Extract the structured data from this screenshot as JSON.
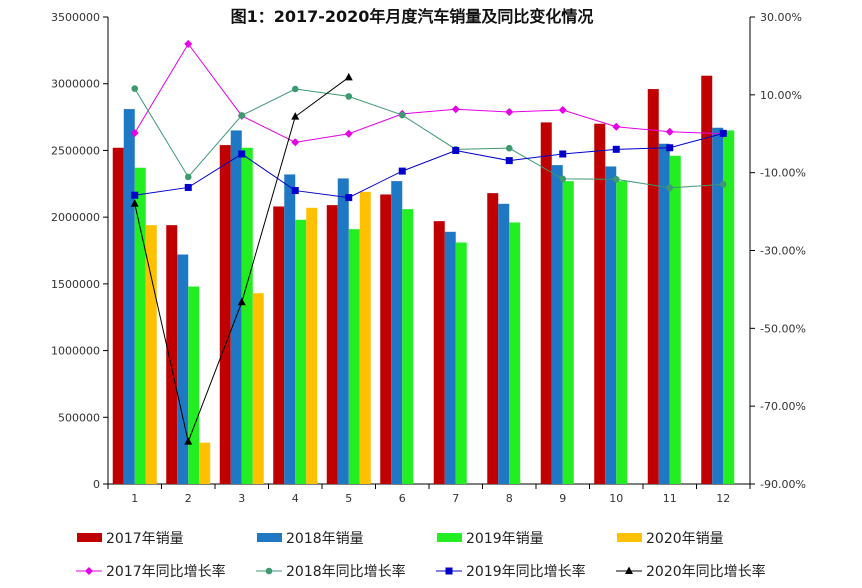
{
  "chart_data": {
    "type": "bar",
    "title": "图1：2017-2020年月度汽车销量及同比变化情况",
    "categories": [
      "1",
      "2",
      "3",
      "4",
      "5",
      "6",
      "7",
      "8",
      "9",
      "10",
      "11",
      "12"
    ],
    "y_left": {
      "ylim": [
        0,
        3500000
      ],
      "ticks": [
        "0",
        "500000",
        "1000000",
        "1500000",
        "2000000",
        "2500000",
        "3000000",
        "3500000"
      ]
    },
    "y_right": {
      "ylim": [
        -90,
        30
      ],
      "ticks": [
        "-90.00%",
        "-70.00%",
        "-50.00%",
        "-30.00%",
        "-10.00%",
        "10.00%",
        "30.00%"
      ]
    },
    "bar_series": [
      {
        "name": "2017年销量",
        "color": "#C00000",
        "values": [
          2520000,
          1940000,
          2540000,
          2080000,
          2090000,
          2170000,
          1970000,
          2180000,
          2710000,
          2700000,
          2960000,
          3060000
        ]
      },
      {
        "name": "2018年销量",
        "color": "#1F78C4",
        "values": [
          2810000,
          1720000,
          2650000,
          2320000,
          2290000,
          2270000,
          1890000,
          2100000,
          2390000,
          2380000,
          2550000,
          2670000
        ]
      },
      {
        "name": "2019年销量",
        "color": "#22EE22",
        "values": [
          2370000,
          1480000,
          2520000,
          1980000,
          1910000,
          2060000,
          1810000,
          1960000,
          2270000,
          2270000,
          2460000,
          2650000
        ]
      },
      {
        "name": "2020年销量",
        "color": "#FFC000",
        "values": [
          1940000,
          310000,
          1430000,
          2070000,
          2190000,
          null,
          null,
          null,
          null,
          null,
          null,
          null
        ]
      }
    ],
    "line_series": [
      {
        "name": "2017年同比增长率",
        "color": "#E600E6",
        "marker": "diamond",
        "values": [
          0.2,
          23.1,
          4.6,
          -2.2,
          0.0,
          5.1,
          6.3,
          5.6,
          6.1,
          1.8,
          0.5,
          0.0
        ]
      },
      {
        "name": "2018年同比增长率",
        "color": "#3D9970",
        "marker": "circle",
        "values": [
          11.6,
          -11.1,
          4.7,
          11.5,
          9.6,
          4.8,
          -4.0,
          -3.7,
          -11.6,
          -11.7,
          -13.9,
          -13.0
        ]
      },
      {
        "name": "2019年同比增长率",
        "color": "#0000CC",
        "marker": "square",
        "values": [
          -15.8,
          -13.8,
          -5.2,
          -14.6,
          -16.4,
          -9.6,
          -4.3,
          -6.9,
          -5.2,
          -4.0,
          -3.6,
          0.1
        ]
      },
      {
        "name": "2020年同比增长率",
        "color": "#000000",
        "marker": "triangle",
        "values": [
          -18.0,
          -79.1,
          -43.3,
          4.4,
          14.5,
          null,
          null,
          null,
          null,
          null,
          null,
          null
        ]
      }
    ]
  }
}
